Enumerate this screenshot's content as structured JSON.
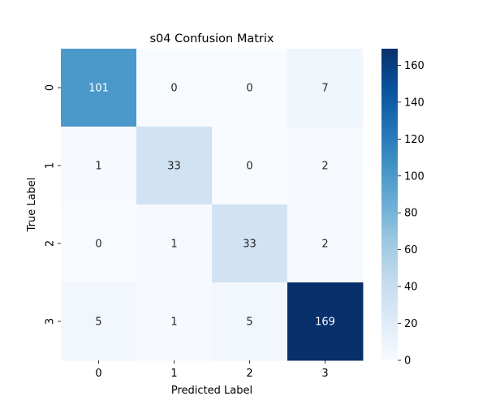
{
  "chart_data": {
    "type": "heatmap",
    "title": "s04 Confusion Matrix",
    "xlabel": "Predicted Label",
    "ylabel": "True Label",
    "x_categories": [
      "0",
      "1",
      "2",
      "3"
    ],
    "y_categories": [
      "0",
      "1",
      "2",
      "3"
    ],
    "values": [
      [
        101,
        0,
        0,
        7
      ],
      [
        1,
        33,
        0,
        2
      ],
      [
        0,
        1,
        33,
        2
      ],
      [
        5,
        1,
        5,
        169
      ]
    ],
    "colorbar": {
      "min": 0,
      "max": 169,
      "ticks": [
        0,
        20,
        40,
        60,
        80,
        100,
        120,
        140,
        160
      ],
      "colormap": "Blues"
    },
    "grid": false,
    "annotations": true,
    "colors": {
      "low": "#f7fbff",
      "high": "#08306b",
      "text_dark": "#262626",
      "text_light": "#ffffff"
    }
  }
}
